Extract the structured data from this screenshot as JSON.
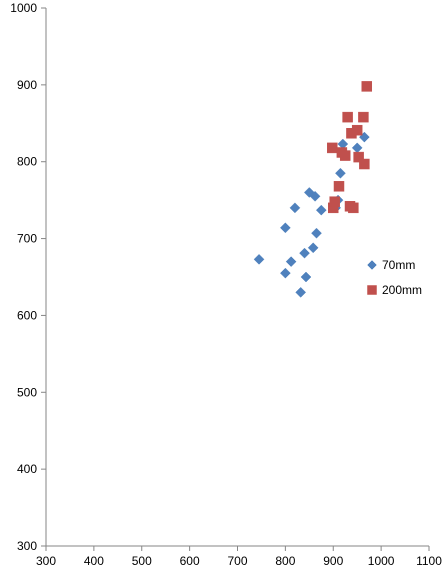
{
  "chart_data": {
    "type": "scatter",
    "title": "",
    "xlabel": "",
    "ylabel": "",
    "xlim": [
      300,
      1100
    ],
    "ylim": [
      300,
      1000
    ],
    "x_ticks": [
      300,
      400,
      500,
      600,
      700,
      800,
      900,
      1000,
      1100
    ],
    "y_ticks": [
      300,
      400,
      500,
      600,
      700,
      800,
      900,
      1000
    ],
    "grid": false,
    "legend_position": "right",
    "series": [
      {
        "name": "70mm",
        "color": "#4F81BD",
        "marker": "diamond",
        "points": [
          [
            745,
            673
          ],
          [
            800,
            714
          ],
          [
            800,
            655
          ],
          [
            812,
            670
          ],
          [
            820,
            740
          ],
          [
            832,
            630
          ],
          [
            840,
            681
          ],
          [
            843,
            650
          ],
          [
            850,
            760
          ],
          [
            858,
            688
          ],
          [
            862,
            755
          ],
          [
            865,
            707
          ],
          [
            875,
            737
          ],
          [
            905,
            740
          ],
          [
            910,
            750
          ],
          [
            915,
            785
          ],
          [
            920,
            823
          ],
          [
            950,
            818
          ],
          [
            965,
            832
          ]
        ]
      },
      {
        "name": "200mm",
        "color": "#C0504D",
        "marker": "square",
        "points": [
          [
            898,
            818
          ],
          [
            900,
            740
          ],
          [
            903,
            748
          ],
          [
            912,
            768
          ],
          [
            918,
            812
          ],
          [
            925,
            808
          ],
          [
            930,
            858
          ],
          [
            935,
            742
          ],
          [
            938,
            837
          ],
          [
            942,
            740
          ],
          [
            950,
            841
          ],
          [
            953,
            806
          ],
          [
            963,
            858
          ],
          [
            965,
            797
          ],
          [
            970,
            898
          ]
        ]
      }
    ]
  }
}
